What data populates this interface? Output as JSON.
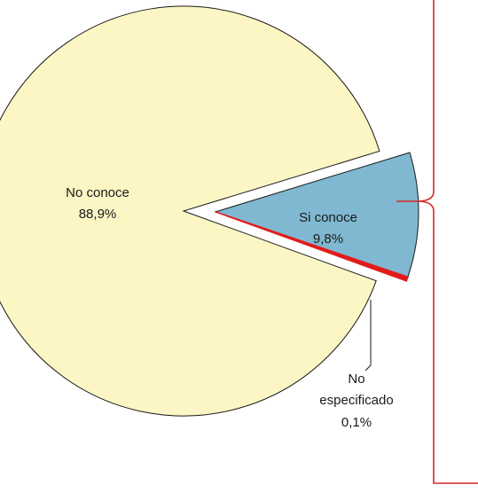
{
  "chart_data": {
    "type": "pie",
    "exploded": "Si conoce",
    "slices": [
      {
        "label": "No conoce",
        "value_label": "88,9%",
        "value": 88.9,
        "color": "#fbf6c4"
      },
      {
        "label": "Si conoce",
        "value_label": "9,8%",
        "value": 9.8,
        "color": "#7fb8d0"
      },
      {
        "label": "No especificado",
        "value_label": "0,1%",
        "value": 0.1,
        "color": "#e31b1b"
      }
    ],
    "outline_color": "#1a1a1a",
    "bracket_color": "#d42a2a",
    "title": "",
    "legend": "none"
  }
}
